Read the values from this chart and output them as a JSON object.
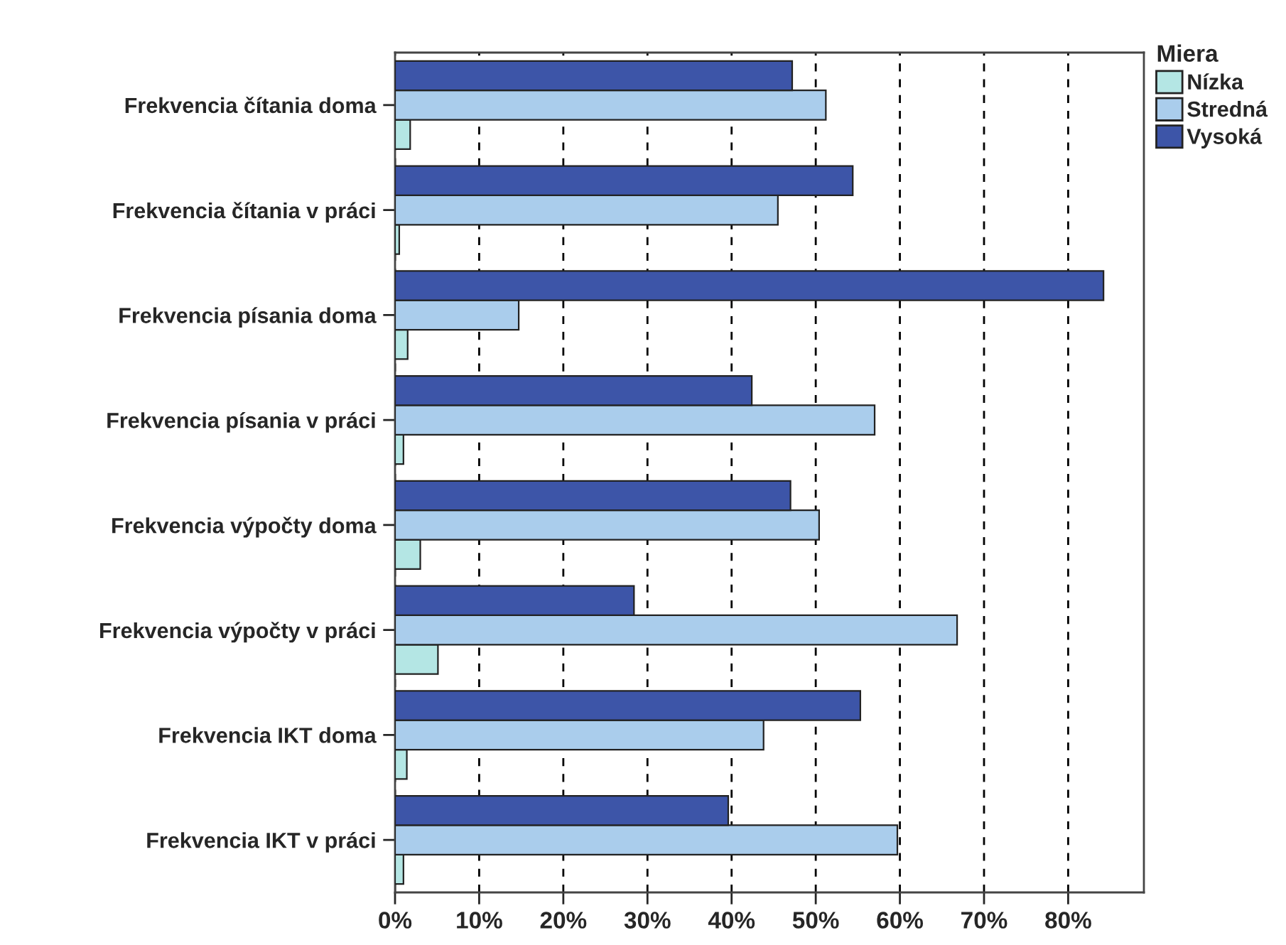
{
  "chart_data": {
    "type": "bar",
    "orientation": "horizontal",
    "legend_title": "Miera",
    "legend": "top right",
    "grid": "x",
    "categories": [
      "Frekvencia čítania doma",
      "Frekvencia čítania v práci",
      "Frekvencia písania doma",
      "Frekvencia písania v práci",
      "Frekvencia výpočty doma",
      "Frekvencia výpočty v práci",
      "Frekvencia IKT doma",
      "Frekvencia IKT v práci"
    ],
    "series": [
      {
        "name": "Nízka",
        "color": "#b4e6e4",
        "values": [
          1.8,
          0.5,
          1.5,
          1.0,
          3.0,
          5.1,
          1.4,
          1.0
        ]
      },
      {
        "name": "Stredná",
        "color": "#aacdec",
        "values": [
          51.2,
          45.5,
          14.7,
          57.0,
          50.4,
          66.8,
          43.8,
          59.7
        ]
      },
      {
        "name": "Vysoká",
        "color": "#3d55a8",
        "values": [
          47.2,
          54.4,
          84.2,
          42.4,
          47.0,
          28.4,
          55.3,
          39.6
        ]
      }
    ],
    "xlim": [
      0,
      89
    ],
    "xticks": [
      {
        "value": 0,
        "label": "0%"
      },
      {
        "value": 10,
        "label": "10%"
      },
      {
        "value": 20,
        "label": "20%"
      },
      {
        "value": 30,
        "label": "30%"
      },
      {
        "value": 40,
        "label": "40%"
      },
      {
        "value": 50,
        "label": "50%"
      },
      {
        "value": 60,
        "label": "60%"
      },
      {
        "value": 70,
        "label": "70%"
      },
      {
        "value": 80,
        "label": "80%"
      }
    ]
  }
}
